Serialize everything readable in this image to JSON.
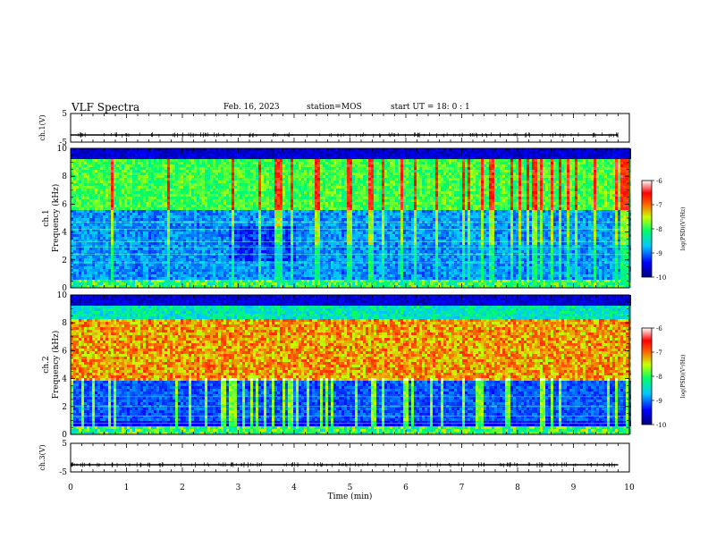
{
  "header": {
    "title": "VLF Spectra",
    "date": "Feb. 16, 2023",
    "station": "station=MOS",
    "start": "start  UT =  18: 0  : 1"
  },
  "chart_data": [
    {
      "type": "line",
      "name": "ch1-voltage",
      "ylabel": "ch.1(V)",
      "yticks": [
        "5",
        "-5"
      ],
      "ylim": [
        -5,
        5
      ],
      "x_range_min": [
        0,
        9.8
      ],
      "level": 0
    },
    {
      "type": "heatmap",
      "name": "ch1-spectrogram",
      "ylabel": "ch.1\nFrequency (kHz)",
      "ylabel_lines": [
        "ch.1",
        "Frequency (kHz)"
      ],
      "yticks": [
        "0",
        "2",
        "4",
        "6",
        "8",
        "10"
      ],
      "ylim": [
        0,
        10
      ],
      "colorbar": {
        "label": "log(PSD)(V²/Hz)",
        "ticks": [
          "-6",
          "-7",
          "-8",
          "-9",
          "-10"
        ],
        "range": [
          -10,
          -6
        ]
      }
    },
    {
      "type": "heatmap",
      "name": "ch2-spectrogram",
      "ylabel": "ch.2\nFrequency (kHz)",
      "ylabel_lines": [
        "ch.2",
        "Frequency (kHz)"
      ],
      "yticks": [
        "0",
        "2",
        "4",
        "6",
        "8",
        "10"
      ],
      "ylim": [
        0,
        10
      ],
      "colorbar": {
        "label": "log(PSD)(V²/Hz)",
        "ticks": [
          "-6",
          "-7",
          "-8",
          "-9",
          "-10"
        ],
        "range": [
          -10,
          -6
        ]
      }
    },
    {
      "type": "line",
      "name": "ch3-voltage",
      "ylabel": "ch.3(V)",
      "yticks": [
        "5",
        "-5"
      ],
      "ylim": [
        -5,
        5
      ],
      "x_range_min": [
        0,
        9.8
      ],
      "level": 0
    }
  ],
  "xaxis": {
    "label": "Time  (min)",
    "ticks": [
      "0",
      "1",
      "2",
      "3",
      "4",
      "5",
      "6",
      "7",
      "8",
      "9",
      "10"
    ],
    "range": [
      0,
      10
    ]
  }
}
